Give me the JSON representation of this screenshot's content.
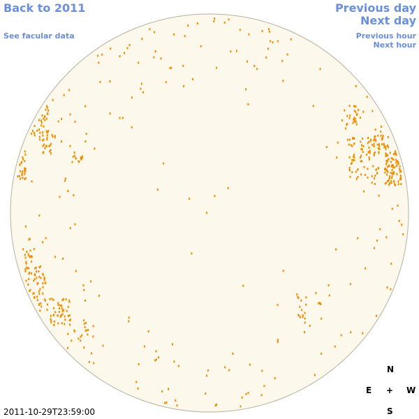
{
  "nav": {
    "back": "Back to 2011",
    "previous_day": "Previous day",
    "next_day": "Next day",
    "facular": "See facular data",
    "previous_hour": "Previous hour",
    "next_hour": "Next hour"
  },
  "compass": {
    "north": "N",
    "east": "E",
    "center": "+",
    "west": "W",
    "south": "S"
  },
  "timestamp": "2011-10-29T23:59:00"
}
